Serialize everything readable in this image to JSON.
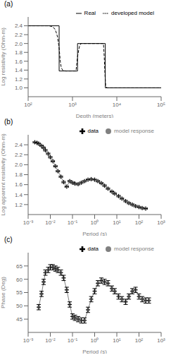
{
  "chart_data": [
    {
      "type": "line",
      "title": "(a)",
      "xlabel": "Depth (meters)",
      "ylabel": "Log resistivity (Ohm-m)",
      "log": "x",
      "grid": false,
      "legend": "upper right",
      "xlim": [
        100,
        100000
      ],
      "ylim": [
        0.8,
        2.6
      ],
      "xticks": [
        {
          "value": 100,
          "label": "10²"
        },
        {
          "value": 1000,
          "label": "10³"
        },
        {
          "value": 10000,
          "label": "10⁴"
        },
        {
          "value": 100000,
          "label": "10⁵"
        }
      ],
      "yticks": [
        {
          "value": 1.0,
          "label": "1.0"
        },
        1.2,
        1.4,
        1.6,
        1.8,
        {
          "value": 2.0,
          "label": "2.0"
        },
        2.2,
        2.4
      ],
      "series": [
        {
          "name": "Real",
          "color": "#000000",
          "line_style": "solid",
          "marker": "none",
          "x": [
            100,
            500,
            500,
            1300,
            1300,
            5500,
            5500,
            100000
          ],
          "values": [
            2.4,
            2.4,
            1.38,
            1.38,
            2.0,
            2.0,
            1.0,
            1.0
          ]
        },
        {
          "name": "developed model",
          "color": "#000000",
          "line_style": "dashed",
          "marker": "none",
          "x": [
            100,
            300,
            350,
            400,
            430,
            460,
            500,
            530,
            560,
            600,
            700,
            800,
            900,
            1000,
            1100,
            1200,
            1300,
            1380,
            1450,
            1550,
            1700,
            2000,
            2500,
            3000,
            4000,
            5000,
            5200,
            5400,
            5600,
            6000,
            7000,
            8000,
            10000,
            100000
          ],
          "values": [
            2.4,
            2.4,
            2.38,
            2.33,
            2.25,
            2.15,
            1.9,
            1.6,
            1.45,
            1.4,
            1.38,
            1.38,
            1.38,
            1.38,
            1.38,
            1.38,
            1.7,
            1.85,
            1.95,
            2.0,
            2.0,
            2.0,
            2.0,
            2.0,
            2.0,
            2.0,
            1.7,
            1.3,
            1.05,
            1.0,
            1.0,
            1.0,
            1.0,
            1.0
          ]
        }
      ]
    },
    {
      "type": "line",
      "title": "(b)",
      "xlabel": "Period (s)",
      "ylabel": "Log apparent resistivity (Ohm-m)",
      "log": "x",
      "grid": false,
      "legend": "upper right",
      "xlim": [
        0.001,
        1000
      ],
      "ylim": [
        1.0,
        2.6
      ],
      "xticks": [
        {
          "value": 0.001,
          "label": "10⁻³"
        },
        {
          "value": 0.01,
          "label": "10⁻²"
        },
        {
          "value": 0.1,
          "label": "10⁻¹"
        },
        {
          "value": 1,
          "label": "10⁰"
        },
        {
          "value": 10,
          "label": "10¹"
        },
        {
          "value": 100,
          "label": "10²"
        },
        {
          "value": 1000,
          "label": "10³"
        }
      ],
      "yticks": [
        1.2,
        1.4,
        1.6,
        1.8,
        {
          "value": 2.0,
          "label": "2.0"
        },
        2.2,
        2.4
      ],
      "x": [
        0.002,
        0.0025,
        0.003,
        0.004,
        0.005,
        0.006,
        0.008,
        0.01,
        0.013,
        0.017,
        0.022,
        0.03,
        0.04,
        0.055,
        0.075,
        0.1,
        0.13,
        0.18,
        0.25,
        0.35,
        0.5,
        0.7,
        1.0,
        1.4,
        2.0,
        2.8,
        4.0,
        6.0,
        8.0,
        12.0,
        17.0,
        25.0,
        35.0,
        50.0,
        70.0,
        100.0,
        140.0,
        200.0
      ],
      "series": [
        {
          "name": "model response",
          "color": "#808080",
          "line_style": "solid",
          "marker": "circle",
          "values": [
            2.45,
            2.44,
            2.42,
            2.38,
            2.34,
            2.29,
            2.22,
            2.15,
            2.07,
            1.97,
            1.87,
            1.76,
            1.65,
            1.56,
            1.67,
            1.64,
            1.62,
            1.61,
            1.64,
            1.67,
            1.7,
            1.71,
            1.7,
            1.67,
            1.63,
            1.58,
            1.52,
            1.46,
            1.42,
            1.37,
            1.32,
            1.27,
            1.23,
            1.2,
            1.17,
            1.15,
            1.13,
            1.12
          ]
        },
        {
          "name": "data",
          "color": "#000000",
          "line_style": "none",
          "marker": "plus",
          "values": [
            2.45,
            2.44,
            2.42,
            2.38,
            2.34,
            2.29,
            2.22,
            2.15,
            2.07,
            1.97,
            1.87,
            1.76,
            1.65,
            1.56,
            1.67,
            1.64,
            1.62,
            1.61,
            1.64,
            1.67,
            1.7,
            1.71,
            1.7,
            1.67,
            1.63,
            1.58,
            1.52,
            1.46,
            1.42,
            1.37,
            1.32,
            1.27,
            1.23,
            1.2,
            1.17,
            1.15,
            1.13,
            1.12
          ],
          "errors": [
            0.015,
            0.015,
            0.015,
            0.015,
            0.015,
            0.015,
            0.015,
            0.015,
            0.015,
            0.015,
            0.015,
            0.015,
            0.015,
            0.015,
            0.015,
            0.015,
            0.015,
            0.015,
            0.015,
            0.015,
            0.015,
            0.015,
            0.015,
            0.015,
            0.015,
            0.015,
            0.015,
            0.015,
            0.015,
            0.015,
            0.015,
            0.015,
            0.015,
            0.015,
            0.015,
            0.015,
            0.015,
            0.015
          ]
        }
      ]
    },
    {
      "type": "line",
      "title": "(c)",
      "xlabel": "Period (s)",
      "ylabel": "Phase (Deg)",
      "log": "x",
      "grid": false,
      "legend": "upper right",
      "xlim": [
        0.001,
        1000
      ],
      "ylim": [
        40,
        70
      ],
      "xticks": [
        {
          "value": 0.001,
          "label": "10⁻³"
        },
        {
          "value": 0.01,
          "label": "10⁻²"
        },
        {
          "value": 0.1,
          "label": "10⁻¹"
        },
        {
          "value": 1,
          "label": "10⁰"
        },
        {
          "value": 10,
          "label": "10¹"
        },
        {
          "value": 100,
          "label": "10²"
        },
        {
          "value": 1000,
          "label": "10³"
        }
      ],
      "yticks": [
        45,
        50,
        55,
        60,
        65
      ],
      "x": [
        0.003,
        0.004,
        0.005,
        0.006,
        0.008,
        0.01,
        0.013,
        0.017,
        0.022,
        0.03,
        0.04,
        0.055,
        0.075,
        0.1,
        0.13,
        0.18,
        0.25,
        0.35,
        0.5,
        0.7,
        1.0,
        1.4,
        2.0,
        2.8,
        4.0,
        6.0,
        8.0,
        12.0,
        17.0,
        25.0,
        35.0,
        50.0,
        70.0,
        100.0,
        140.0,
        200.0,
        280.0
      ],
      "series": [
        {
          "name": "model response",
          "color": "#808080",
          "line_style": "solid",
          "marker": "circle",
          "values": [
            49.5,
            54.5,
            59.0,
            62.5,
            63.5,
            64.5,
            64.5,
            64.0,
            63.5,
            62.5,
            60.5,
            56.0,
            50.5,
            46.0,
            45.5,
            45.0,
            44.5,
            44.5,
            48.5,
            52.5,
            55.5,
            58.5,
            59.5,
            59.0,
            58.5,
            56.5,
            55.5,
            53.5,
            52.5,
            51.5,
            53.5,
            55.5,
            56.0,
            53.5,
            52.5,
            52.0,
            52.0
          ]
        },
        {
          "name": "data",
          "color": "#000000",
          "line_style": "none",
          "marker": "plus",
          "values": [
            49.5,
            54.5,
            59.0,
            62.5,
            63.5,
            64.5,
            64.5,
            64.0,
            63.5,
            62.5,
            60.5,
            56.0,
            50.5,
            46.0,
            45.5,
            45.0,
            44.5,
            44.5,
            48.5,
            52.5,
            55.5,
            58.5,
            59.5,
            59.0,
            58.5,
            56.5,
            55.5,
            53.5,
            52.5,
            51.5,
            53.5,
            55.5,
            56.0,
            53.5,
            52.5,
            52.0,
            52.0
          ],
          "errors": [
            1.0,
            1.0,
            1.0,
            1.0,
            1.0,
            1.0,
            1.0,
            1.0,
            1.0,
            1.0,
            1.0,
            1.0,
            1.0,
            1.0,
            1.0,
            1.0,
            1.0,
            1.0,
            1.0,
            1.0,
            1.0,
            1.0,
            1.0,
            1.0,
            1.0,
            1.0,
            1.0,
            1.0,
            1.0,
            1.0,
            1.0,
            1.0,
            1.0,
            1.0,
            1.0,
            1.0,
            1.0
          ]
        }
      ]
    }
  ]
}
